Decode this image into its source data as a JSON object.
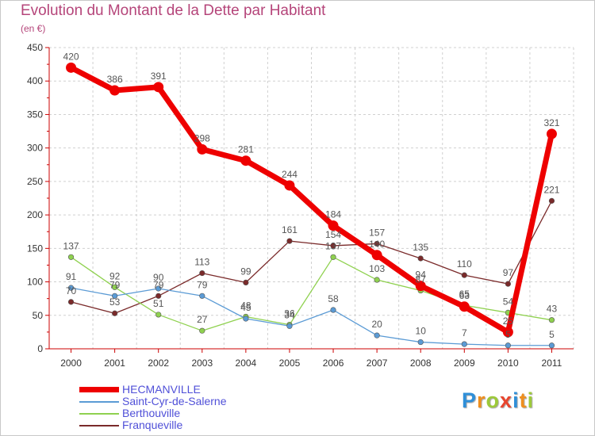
{
  "title": "Evolution du Montant de la Dette par Habitant",
  "unit": "(en €)",
  "logo": {
    "letters": [
      "P",
      "r",
      "o",
      "x",
      "i",
      "t",
      "i"
    ],
    "colors": [
      "#2f8fd8",
      "#ef8f1e",
      "#9dc93a",
      "#e8452e",
      "#2f8fd8",
      "#ef8f1e",
      "#9dc93a"
    ]
  },
  "chart_data": {
    "type": "line",
    "x": [
      "2000",
      "2001",
      "2002",
      "2003",
      "2004",
      "2005",
      "2006",
      "2007",
      "2008",
      "2009",
      "2010",
      "2011"
    ],
    "ylim": [
      0,
      450
    ],
    "yticks": [
      0,
      50,
      100,
      150,
      200,
      250,
      300,
      350,
      400,
      450
    ],
    "ytick_labels": [
      "0",
      "50",
      "100",
      "150",
      "200",
      "250",
      "300",
      "350",
      "400",
      "450"
    ],
    "grid": true,
    "legend_position": "bottom-left",
    "series": [
      {
        "name": "HECMANVILLE",
        "color": "#ee0000",
        "values": [
          420,
          386,
          391,
          298,
          281,
          244,
          184,
          140,
          94,
          63,
          25,
          321
        ],
        "labels": [
          "420",
          "386",
          "391",
          "298",
          "281",
          "244",
          "184",
          "140",
          "94",
          "63",
          "25",
          "321"
        ]
      },
      {
        "name": "Saint-Cyr-de-Salerne",
        "color": "#5b9bd5",
        "values": [
          91,
          79,
          90,
          79,
          45,
          34,
          58,
          20,
          10,
          7,
          5,
          5
        ],
        "labels": [
          "91",
          "79",
          "90",
          "79",
          "45",
          "34",
          "58",
          "20",
          "10",
          "7",
          "5",
          "5"
        ]
      },
      {
        "name": "Berthouville",
        "color": "#8fd14f",
        "values": [
          137,
          92,
          51,
          27,
          48,
          36,
          137,
          103,
          87,
          65,
          54,
          43
        ],
        "labels": [
          "137",
          "92",
          "51",
          "27",
          "48",
          "36",
          "137",
          "103",
          "87",
          "65",
          "54",
          "43"
        ]
      },
      {
        "name": "Franqueville",
        "color": "#7a2a2a",
        "values": [
          70,
          53,
          79,
          113,
          99,
          161,
          154,
          157,
          135,
          110,
          97,
          221
        ],
        "labels": [
          "70",
          "53",
          "79",
          "113",
          "99",
          "161",
          "154",
          "157",
          "135",
          "110",
          "97",
          "221"
        ]
      }
    ]
  }
}
